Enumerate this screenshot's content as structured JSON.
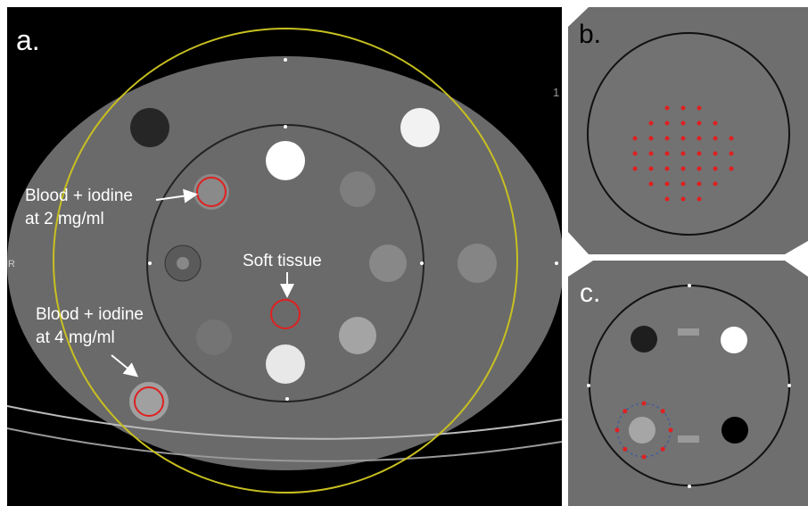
{
  "panels": [
    {
      "label": "a."
    },
    {
      "label": "b."
    },
    {
      "label": "c."
    }
  ],
  "annotations": [
    {
      "lines": [
        "Blood + iodine",
        "at 2 mg/ml"
      ]
    },
    {
      "lines": [
        "Soft tissue"
      ]
    },
    {
      "lines": [
        "Blood + iodine",
        "at 4 mg/ml"
      ]
    }
  ],
  "orientation_marker": "R",
  "scale_marker": "1"
}
